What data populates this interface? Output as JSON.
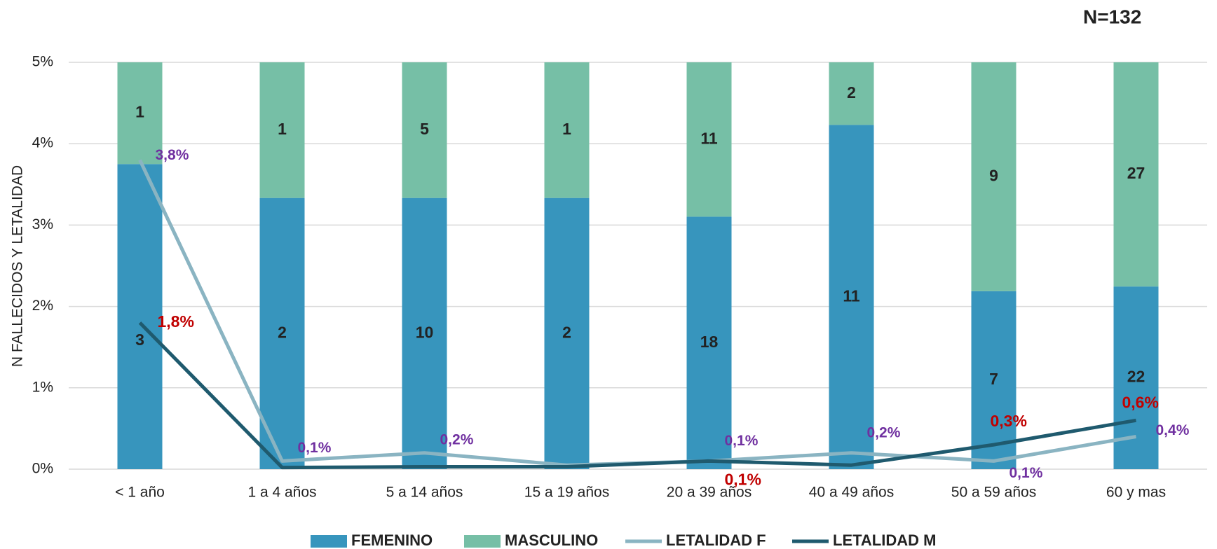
{
  "chart_data": {
    "type": "bar",
    "stacked": "percent",
    "annotation": "N=132",
    "y_label": "N FALLECIDOS Y LETALIDAD",
    "categories": [
      "< 1 año",
      "1 a 4 años",
      "5 a 14 años",
      "15 a 19 años",
      "20 a 39 años",
      "40 a 49 años",
      "50 a 59 años",
      "60 y mas"
    ],
    "ylim": [
      0,
      5
    ],
    "yticks": [
      {
        "value": 0,
        "label": "0%"
      },
      {
        "value": 1,
        "label": "1%"
      },
      {
        "value": 2,
        "label": "2%"
      },
      {
        "value": 3,
        "label": "3%"
      },
      {
        "value": 4,
        "label": "4%"
      },
      {
        "value": 5,
        "label": "5%"
      }
    ],
    "grid": true,
    "legend": "bottom",
    "series": [
      {
        "name": "FEMENINO",
        "type": "bar",
        "color": "#3795bd",
        "values": [
          3,
          2,
          10,
          2,
          18,
          11,
          7,
          22
        ]
      },
      {
        "name": "MASCULINO",
        "type": "bar",
        "color": "#76bfa6",
        "values": [
          1,
          1,
          5,
          1,
          11,
          2,
          9,
          27
        ]
      },
      {
        "name": "LETALIDAD F",
        "type": "line",
        "color": "#8ab4c2",
        "label_color": "#7030a0",
        "values": [
          3.8,
          0.1,
          0.2,
          0.05,
          0.1,
          0.2,
          0.1,
          0.4
        ],
        "value_labels": [
          "3,8%",
          "0,1%",
          "0,2%",
          null,
          "0,1%",
          "0,2%",
          "0,1%",
          "0,4%"
        ]
      },
      {
        "name": "LETALIDAD M",
        "type": "line",
        "color": "#1f5a6e",
        "label_color": "#c00000",
        "values": [
          1.8,
          0.02,
          0.03,
          0.03,
          0.1,
          0.05,
          0.3,
          0.6
        ],
        "value_labels": [
          "1,8%",
          null,
          null,
          null,
          "0,1%",
          null,
          "0,3%",
          "0,6%"
        ]
      }
    ]
  }
}
